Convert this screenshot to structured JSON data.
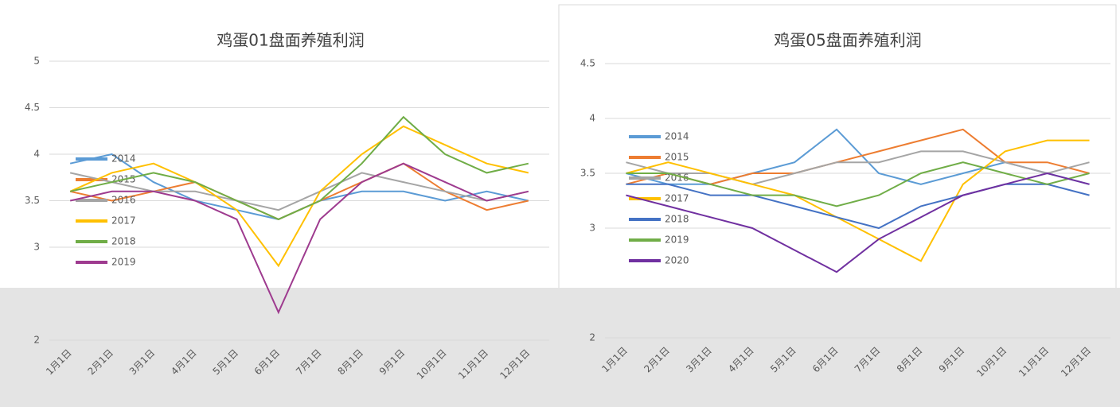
{
  "chart_data": [
    {
      "type": "line",
      "title": "鸡蛋01盘面养殖利润",
      "categories": [
        "1月1日",
        "2月1日",
        "3月1日",
        "4月1日",
        "5月1日",
        "6月1日",
        "7月1日",
        "8月1日",
        "9月1日",
        "10月1日",
        "11月1日",
        "12月1日"
      ],
      "ylim": [
        2,
        5
      ],
      "yticks": [
        2,
        3,
        3.5,
        4,
        4.5,
        5
      ],
      "grid": true,
      "series": [
        {
          "name": "2014",
          "color": "#5b9bd5",
          "values": [
            3.9,
            4.0,
            3.7,
            3.5,
            3.4,
            3.3,
            3.5,
            3.6,
            3.6,
            3.5,
            3.6,
            3.5
          ]
        },
        {
          "name": "2015",
          "color": "#ed7d31",
          "values": [
            3.6,
            3.5,
            3.6,
            3.7,
            3.5,
            3.3,
            3.5,
            3.7,
            3.9,
            3.6,
            3.4,
            3.5
          ]
        },
        {
          "name": "2016",
          "color": "#a5a5a5",
          "values": [
            3.8,
            3.7,
            3.6,
            3.6,
            3.5,
            3.4,
            3.6,
            3.8,
            3.7,
            3.6,
            3.5,
            3.6
          ]
        },
        {
          "name": "2017",
          "color": "#ffc000",
          "values": [
            3.6,
            3.8,
            3.9,
            3.7,
            3.4,
            2.8,
            3.6,
            4.0,
            4.3,
            4.1,
            3.9,
            3.8
          ]
        },
        {
          "name": "2018",
          "color": "#70ad47",
          "values": [
            3.6,
            3.7,
            3.8,
            3.7,
            3.5,
            3.3,
            3.5,
            3.9,
            4.4,
            4.0,
            3.8,
            3.9
          ]
        },
        {
          "name": "2019",
          "color": "#9e3b8f",
          "values": [
            3.5,
            3.6,
            3.6,
            3.5,
            3.3,
            2.3,
            3.3,
            3.7,
            3.9,
            3.7,
            3.5,
            3.6
          ]
        }
      ]
    },
    {
      "type": "line",
      "title": "鸡蛋05盘面养殖利润",
      "categories": [
        "1月1日",
        "2月1日",
        "3月1日",
        "4月1日",
        "5月1日",
        "6月1日",
        "7月1日",
        "8月1日",
        "9月1日",
        "10月1日",
        "11月1日",
        "12月1日"
      ],
      "ylim": [
        2,
        4.5
      ],
      "yticks": [
        2,
        3,
        3.5,
        4,
        4.5
      ],
      "grid": true,
      "series": [
        {
          "name": "2014",
          "color": "#5b9bd5",
          "values": [
            3.5,
            3.4,
            3.4,
            3.5,
            3.6,
            3.9,
            3.5,
            3.4,
            3.5,
            3.6,
            3.5,
            3.4
          ]
        },
        {
          "name": "2015",
          "color": "#ed7d31",
          "values": [
            3.4,
            3.5,
            3.4,
            3.5,
            3.5,
            3.6,
            3.7,
            3.8,
            3.9,
            3.6,
            3.6,
            3.5
          ]
        },
        {
          "name": "2016",
          "color": "#a5a5a5",
          "values": [
            3.6,
            3.5,
            3.5,
            3.4,
            3.5,
            3.6,
            3.6,
            3.7,
            3.7,
            3.6,
            3.5,
            3.6
          ]
        },
        {
          "name": "2017",
          "color": "#ffc000",
          "values": [
            3.5,
            3.6,
            3.5,
            3.4,
            3.3,
            3.1,
            2.9,
            2.7,
            3.4,
            3.7,
            3.8,
            3.8
          ]
        },
        {
          "name": "2018",
          "color": "#4472c4",
          "values": [
            3.4,
            3.4,
            3.3,
            3.3,
            3.2,
            3.1,
            3.0,
            3.2,
            3.3,
            3.4,
            3.4,
            3.3
          ]
        },
        {
          "name": "2019",
          "color": "#70ad47",
          "values": [
            3.5,
            3.5,
            3.4,
            3.3,
            3.3,
            3.2,
            3.3,
            3.5,
            3.6,
            3.5,
            3.4,
            3.5
          ]
        },
        {
          "name": "2020",
          "color": "#7030a0",
          "values": [
            3.3,
            3.2,
            3.1,
            3.0,
            2.8,
            2.6,
            2.9,
            3.1,
            3.3,
            3.4,
            3.5,
            3.4
          ]
        }
      ]
    }
  ]
}
